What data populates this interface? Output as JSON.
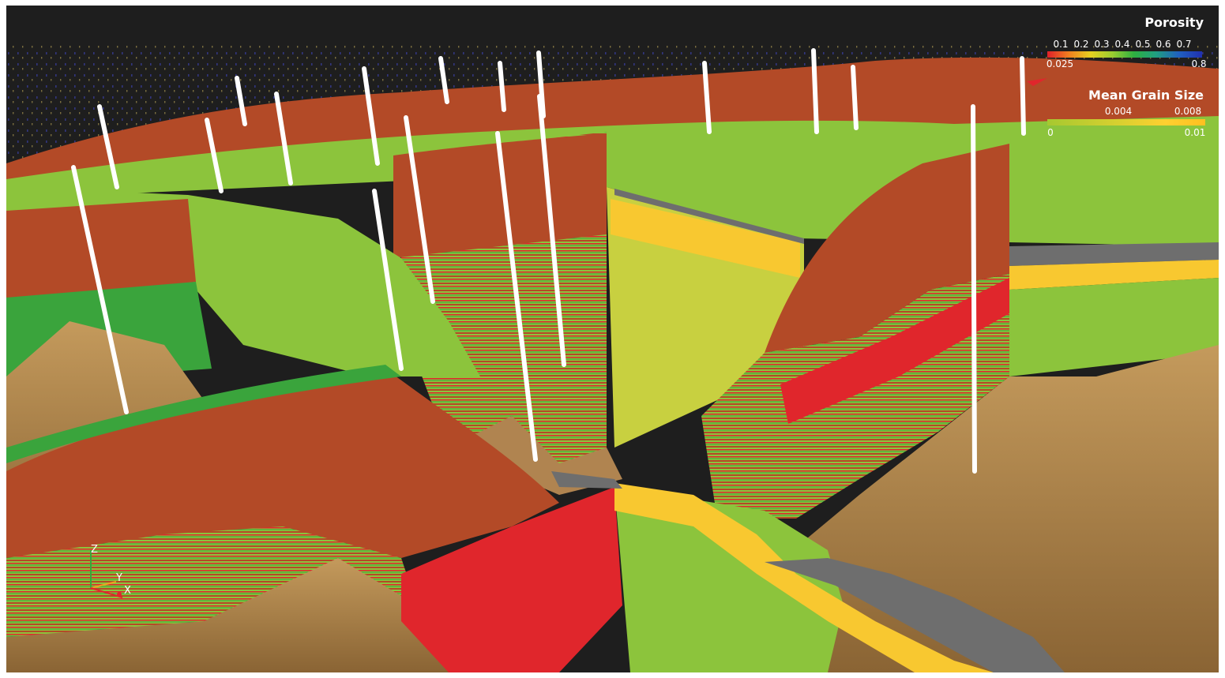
{
  "legends": {
    "porosity": {
      "title": "Porosity",
      "top_ticks": [
        "0.1",
        "0.2",
        "0.3",
        "0.4",
        "0.5",
        "0.6",
        "0.7"
      ],
      "min_label": "0.025",
      "max_label": "0.8",
      "colors": [
        "#e0202a",
        "#e6d020",
        "#9acc30",
        "#2eb040",
        "#2060c0"
      ]
    },
    "grain_size": {
      "title": "Mean Grain Size",
      "top_ticks": [
        "0.004",
        "0.008"
      ],
      "min_label": "0",
      "max_label": "0.01",
      "colors": [
        "#a6c830",
        "#ffd030",
        "#ffc020"
      ]
    }
  },
  "axes": {
    "z": "Z",
    "y": "Y",
    "x": "X"
  },
  "palette": {
    "background": "#1e1e1e",
    "red_brown": "#b34a27",
    "green": "#8cc43c",
    "deep_green": "#3aa43c",
    "red": "#e0262c",
    "yellow": "#f8c830",
    "grey": "#6e6e6e",
    "terrain": "#b08450",
    "well": "#ffffff"
  }
}
